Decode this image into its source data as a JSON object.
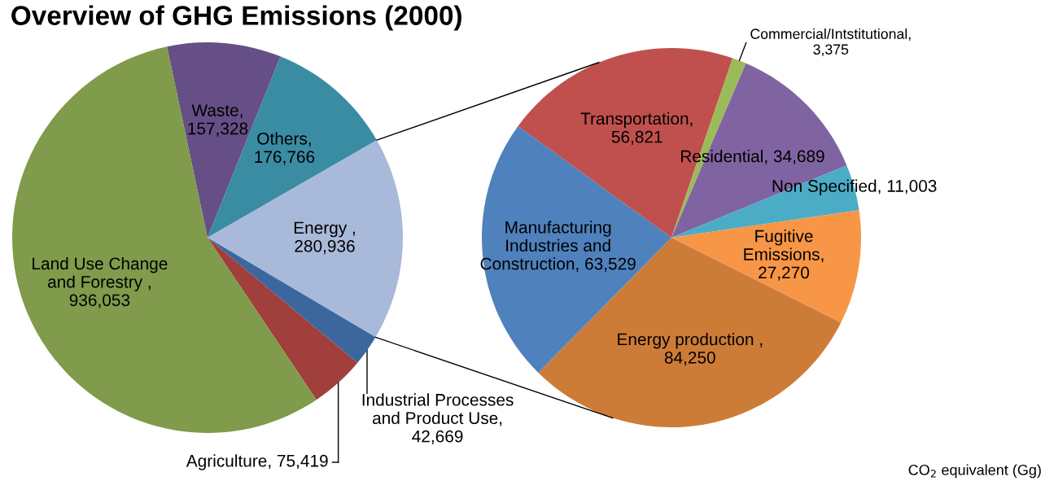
{
  "chart_data": [
    {
      "type": "pie",
      "title": "Overview of GHG Emissions (2000)",
      "categories": [
        "Waste",
        "Others",
        "Energy ",
        "Industrial Processes\nand Product Use",
        "Agriculture",
        "Land Use Change\nand Forestry "
      ],
      "values": [
        157328,
        176766,
        280936,
        42669,
        75419,
        936053
      ],
      "value_labels": [
        ",\n157,328",
        ",\n176,766",
        ",\n280,936",
        ",\n42,669",
        ", 75,419",
        ",\n936,053"
      ],
      "colors": [
        "#664f86",
        "#3a8ca3",
        "#a9b9d9",
        "#3b679e",
        "#a03f3c",
        "#7f9b4b"
      ]
    },
    {
      "type": "pie",
      "categories": [
        "Transportation",
        "Commercial/Intstitutional",
        "Residential",
        "Non Specified",
        "Fugitive\nEmissions",
        "Energy production ",
        "Manufacturing\nIndustries and\nConstruction"
      ],
      "values": [
        56821,
        3375,
        34689,
        11003,
        27270,
        84250,
        63529
      ],
      "value_labels": [
        ",\n56,821",
        ",\n3,375",
        ", 34,689",
        ", 11,003",
        ",\n27,270",
        ",\n84,250",
        ", 63,529"
      ],
      "colors": [
        "#c0504d",
        "#9bbb59",
        "#8064a2",
        "#4bacc6",
        "#f79646",
        "#cd7c38",
        "#4f81bd"
      ],
      "annotations": [
        "CO$_{2}$ equivalent (Gg)"
      ]
    }
  ]
}
